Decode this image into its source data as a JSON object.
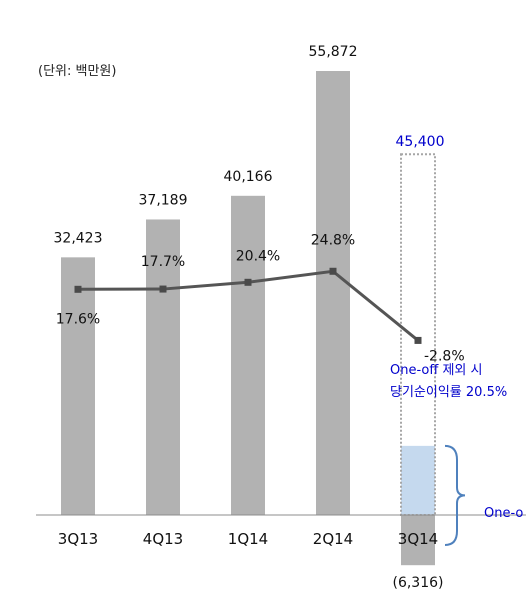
{
  "unit_note": "(단위: 백만원)",
  "colors": {
    "bar": "#b2b2b2",
    "line": "#555555",
    "marker": "#4a4a4a",
    "baseline": "#8c8c8c",
    "accent": "#0000cc",
    "oneoff_fill": "#c5d9ee",
    "bracket": "#4f81bd",
    "dotted_box": "#a6a6a6"
  },
  "chart_data": {
    "type": "bar",
    "title": "",
    "xlabel": "",
    "ylabel": "",
    "categories": [
      "3Q13",
      "4Q13",
      "1Q14",
      "2Q14",
      "3Q14"
    ],
    "series": [
      {
        "kind": "bar",
        "values": [
          32423,
          37189,
          40166,
          55872,
          -6316
        ],
        "value_labels": [
          "32,423",
          "37,189",
          "40,166",
          "55,872",
          "(6,316)"
        ]
      },
      {
        "kind": "line",
        "values": [
          17.6,
          17.7,
          20.4,
          24.8,
          -2.8
        ],
        "value_labels": [
          "17.6%",
          "17.7%",
          "20.4%",
          "24.8%",
          "-2.8%"
        ]
      }
    ],
    "annotations": {
      "oneoff_excluded_value": 45400,
      "oneoff_excluded_label": "45,400",
      "oneoff_portion_top_value": 8700,
      "oneoff_note_line1": "One-off 제외 시",
      "oneoff_note_line2": "당기순이익률 20.5%",
      "bracket_label": "One-o"
    },
    "legend": "none",
    "grid": false
  }
}
